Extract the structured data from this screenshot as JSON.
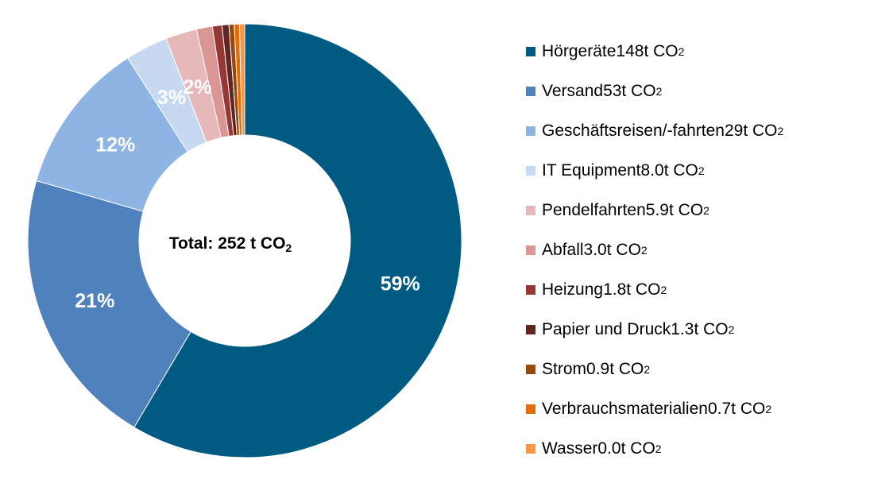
{
  "chart_data": {
    "type": "pie",
    "style": "donut",
    "center_label": "Total: 252 t CO",
    "center_label_sub": "2",
    "unit": "t CO",
    "unit_sub": "2",
    "slices": [
      {
        "name": "Hörgeräte",
        "value_text": "148",
        "value": 148,
        "color": "#005A82",
        "pct_label": "59%"
      },
      {
        "name": "Versand",
        "value_text": "53",
        "value": 53,
        "color": "#4F81BD",
        "pct_label": "21%"
      },
      {
        "name": "Geschäftsreisen/-fahrten",
        "value_text": "29",
        "value": 29,
        "color": "#8DB4E2",
        "pct_label": "12%"
      },
      {
        "name": "IT Equipment",
        "value_text": "8.0",
        "value": 8.0,
        "color": "#C6D9F1",
        "pct_label": "3%"
      },
      {
        "name": "Pendelfahrten",
        "value_text": "5.9",
        "value": 5.9,
        "color": "#E6B9B8",
        "pct_label": "2%"
      },
      {
        "name": "Abfall",
        "value_text": "3.0",
        "value": 3.0,
        "color": "#D99694",
        "pct_label": ""
      },
      {
        "name": "Heizung",
        "value_text": "1.8",
        "value": 1.8,
        "color": "#953735",
        "pct_label": ""
      },
      {
        "name": "Papier und Druck",
        "value_text": "1.3",
        "value": 1.3,
        "color": "#632523",
        "pct_label": ""
      },
      {
        "name": "Strom",
        "value_text": "0.9",
        "value": 0.9,
        "color": "#984807",
        "pct_label": ""
      },
      {
        "name": "Verbrauchsmaterialien",
        "value_text": "0.7",
        "value": 0.7,
        "color": "#E46C0A",
        "pct_label": ""
      },
      {
        "name": "Wasser",
        "value_text": "0.0",
        "value": 0.0,
        "color": "#F79646",
        "pct_label": ""
      }
    ],
    "legend_position": "right"
  }
}
